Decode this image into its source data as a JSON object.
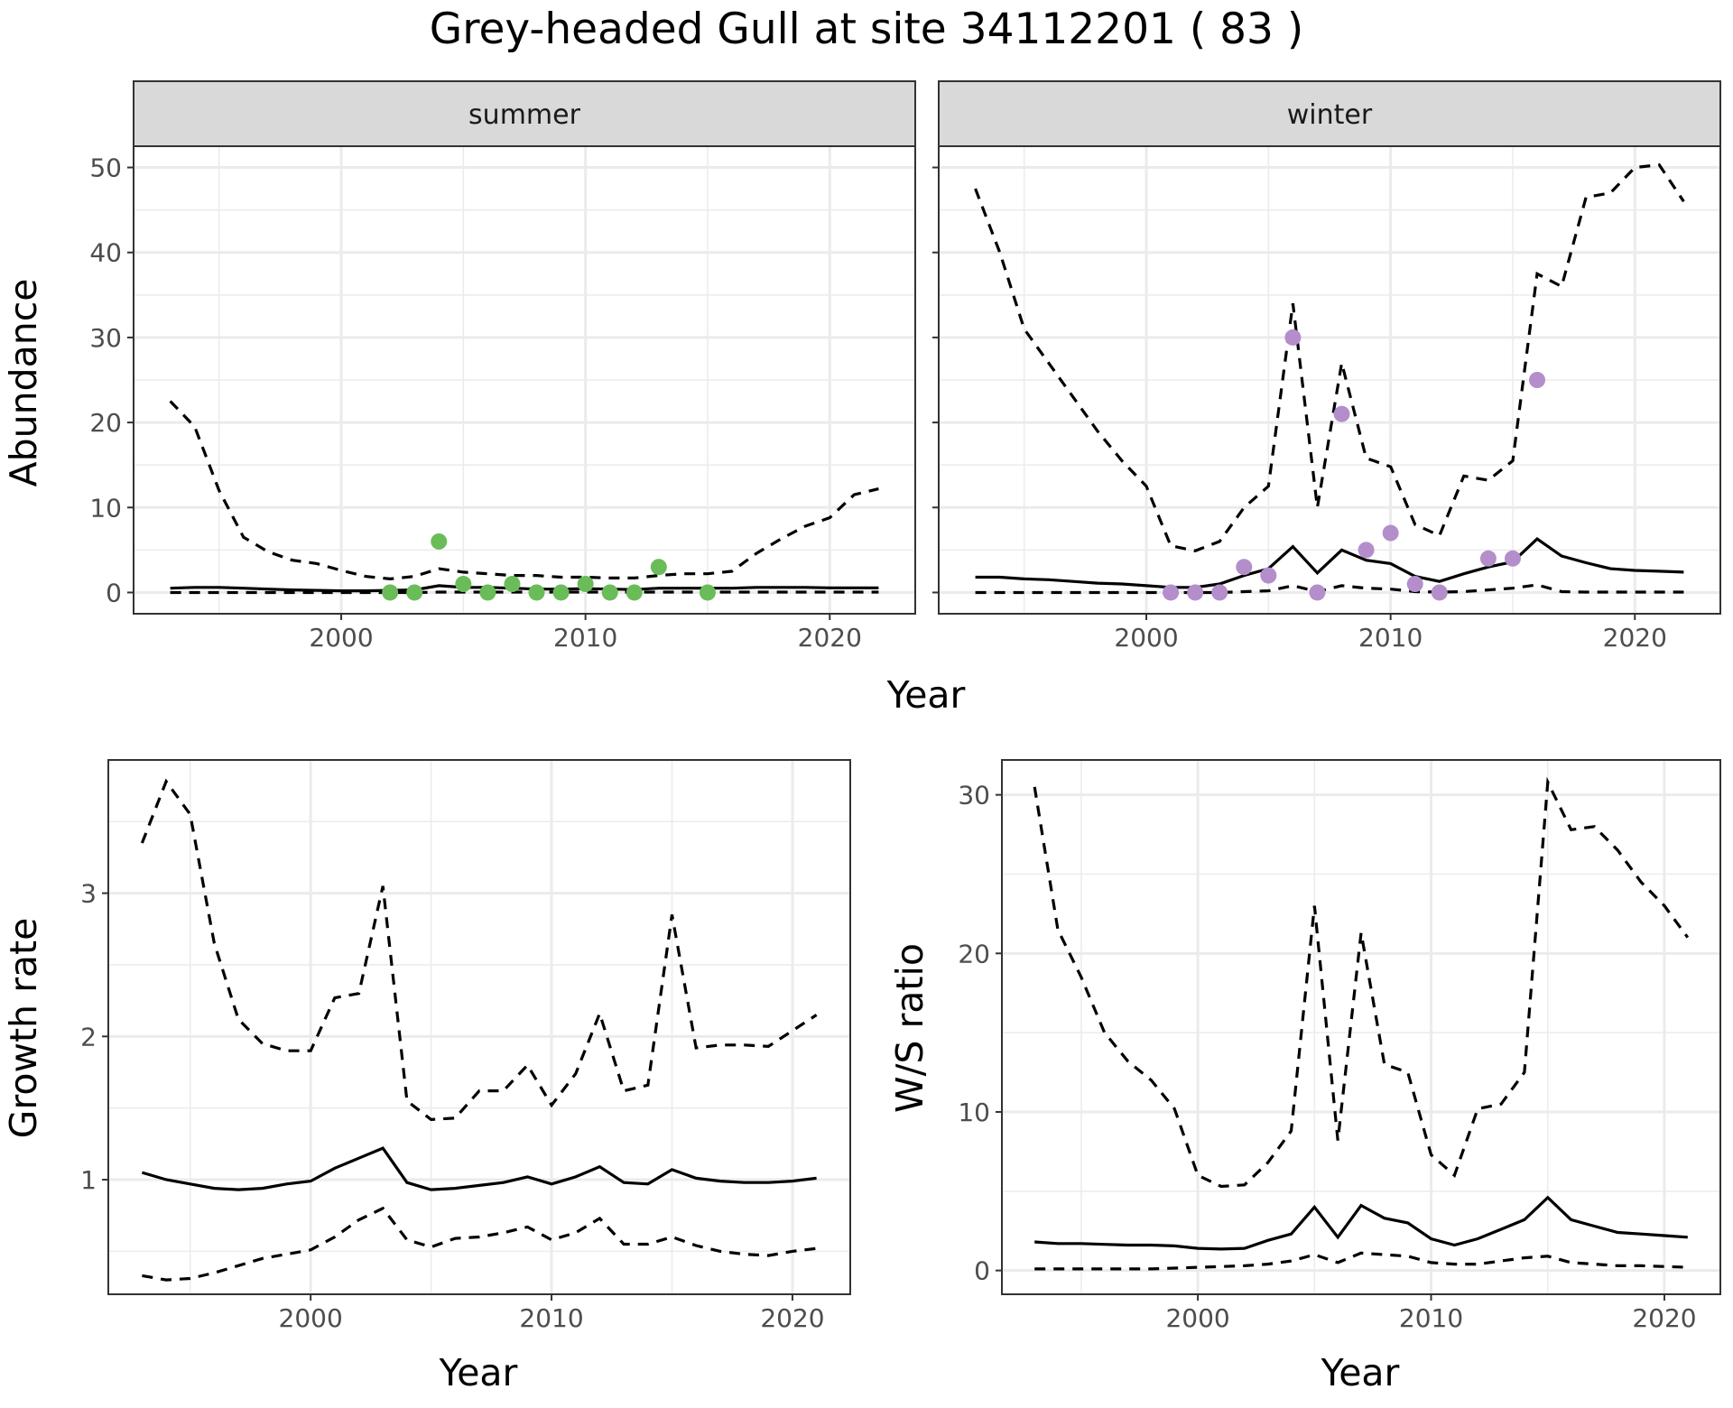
{
  "title": "Grey-headed Gull at site 34112201 ( 83 )",
  "abundance": {
    "ylabel": "Abundance",
    "xlabel": "Year",
    "ylim": [
      -2.5,
      52.5
    ],
    "yticks": [
      0,
      10,
      20,
      30,
      40,
      50
    ],
    "xlim": [
      1991.5,
      2023.5
    ],
    "xticks": [
      2000,
      2010,
      2020
    ]
  },
  "growth": {
    "ylabel": "Growth rate",
    "xlabel": "Year",
    "ylim": [
      0.2,
      3.93
    ],
    "yticks": [
      1,
      2,
      3
    ],
    "xlim": [
      1991.6,
      2022.4
    ],
    "xticks": [
      2000,
      2010,
      2020
    ]
  },
  "ratio": {
    "ylabel": "W/S ratio",
    "xlabel": "Year",
    "ylim": [
      -1.5,
      32.2
    ],
    "yticks": [
      0,
      10,
      20,
      30
    ],
    "xlim": [
      1991.6,
      2022.4
    ],
    "xticks": [
      2000,
      2010,
      2020
    ]
  },
  "chart_data": [
    {
      "type": "line",
      "facet": "summer",
      "point_color": "#6abc58",
      "series": [
        {
          "role": "estimate",
          "x": [
            1993,
            1994,
            1995,
            1996,
            1997,
            1998,
            1999,
            2000,
            2001,
            2002,
            2003,
            2004,
            2005,
            2006,
            2007,
            2008,
            2009,
            2010,
            2011,
            2012,
            2013,
            2014,
            2015,
            2016,
            2017,
            2018,
            2019,
            2020,
            2021,
            2022
          ],
          "values": [
            0.5,
            0.6,
            0.6,
            0.5,
            0.4,
            0.3,
            0.25,
            0.2,
            0.2,
            0.25,
            0.3,
            0.8,
            0.6,
            0.6,
            0.5,
            0.4,
            0.4,
            0.45,
            0.4,
            0.35,
            0.5,
            0.5,
            0.5,
            0.5,
            0.6,
            0.6,
            0.6,
            0.55,
            0.55,
            0.55
          ]
        },
        {
          "role": "upper",
          "x": [
            1993,
            1994,
            1995,
            1996,
            1997,
            1998,
            1999,
            2000,
            2001,
            2002,
            2003,
            2004,
            2005,
            2006,
            2007,
            2008,
            2009,
            2010,
            2011,
            2012,
            2013,
            2014,
            2015,
            2016,
            2017,
            2018,
            2019,
            2020,
            2021,
            2022
          ],
          "values": [
            22.5,
            19.5,
            12,
            6.5,
            4.8,
            3.8,
            3.4,
            2.6,
            1.9,
            1.6,
            1.9,
            2.8,
            2.4,
            2.2,
            2,
            2,
            1.8,
            1.8,
            1.7,
            1.7,
            2,
            2.2,
            2.2,
            2.5,
            4.6,
            6.3,
            7.8,
            8.8,
            11.5,
            12.2
          ]
        },
        {
          "role": "lower",
          "x": [
            1993,
            1994,
            1995,
            1996,
            1997,
            1998,
            1999,
            2000,
            2001,
            2002,
            2003,
            2004,
            2005,
            2006,
            2007,
            2008,
            2009,
            2010,
            2011,
            2012,
            2013,
            2014,
            2015,
            2016,
            2017,
            2018,
            2019,
            2020,
            2021,
            2022
          ],
          "values": [
            0,
            0,
            0,
            0,
            0,
            0,
            0,
            0,
            0,
            0,
            0,
            0.05,
            0.05,
            0.05,
            0.05,
            0.05,
            0.05,
            0.05,
            0.05,
            0.05,
            0.05,
            0.05,
            0.05,
            0.05,
            0.05,
            0.05,
            0.05,
            0.05,
            0.05,
            0.05
          ]
        }
      ],
      "points": {
        "x": [
          2002,
          2003,
          2004,
          2005,
          2006,
          2007,
          2008,
          2009,
          2010,
          2011,
          2012,
          2013,
          2015
        ],
        "y": [
          0,
          0,
          6,
          1,
          0,
          1,
          0,
          0,
          1,
          0,
          0,
          3,
          0
        ]
      }
    },
    {
      "type": "line",
      "facet": "winter",
      "point_color": "#b38ecb",
      "series": [
        {
          "role": "estimate",
          "x": [
            1993,
            1994,
            1995,
            1996,
            1997,
            1998,
            1999,
            2000,
            2001,
            2002,
            2003,
            2004,
            2005,
            2006,
            2007,
            2008,
            2009,
            2010,
            2011,
            2012,
            2013,
            2014,
            2015,
            2016,
            2017,
            2018,
            2019,
            2020,
            2021,
            2022
          ],
          "values": [
            1.8,
            1.8,
            1.6,
            1.5,
            1.3,
            1.1,
            1,
            0.8,
            0.6,
            0.6,
            1,
            2,
            2.8,
            5.4,
            2.3,
            5,
            3.8,
            3.4,
            1.9,
            1.3,
            2.2,
            3,
            3.6,
            6.3,
            4.3,
            3.5,
            2.8,
            2.6,
            2.5,
            2.4
          ]
        },
        {
          "role": "upper",
          "x": [
            1993,
            1994,
            1995,
            1996,
            1997,
            1998,
            1999,
            2000,
            2001,
            2002,
            2003,
            2004,
            2005,
            2006,
            2007,
            2008,
            2009,
            2010,
            2011,
            2012,
            2013,
            2014,
            2015,
            2016,
            2017,
            2018,
            2019,
            2020,
            2021,
            2022
          ],
          "values": [
            47.5,
            40,
            31,
            27,
            23,
            19,
            15.5,
            12.5,
            5.5,
            4.9,
            6,
            10,
            12.5,
            34,
            10,
            27,
            15.8,
            14.8,
            8,
            6.7,
            13.7,
            13.2,
            15.5,
            37.5,
            36,
            46.5,
            47,
            50,
            50.3,
            46
          ]
        },
        {
          "role": "lower",
          "x": [
            1993,
            1994,
            1995,
            1996,
            1997,
            1998,
            1999,
            2000,
            2001,
            2002,
            2003,
            2004,
            2005,
            2006,
            2007,
            2008,
            2009,
            2010,
            2011,
            2012,
            2013,
            2014,
            2015,
            2016,
            2017,
            2018,
            2019,
            2020,
            2021,
            2022
          ],
          "values": [
            0,
            0,
            0,
            0,
            0,
            0,
            0,
            0,
            0,
            0,
            0,
            0.1,
            0.2,
            0.8,
            0.1,
            0.8,
            0.5,
            0.4,
            0.1,
            0.05,
            0.1,
            0.3,
            0.5,
            0.9,
            0.1,
            0.05,
            0.05,
            0.05,
            0.05,
            0.05
          ]
        }
      ],
      "points": {
        "x": [
          2001,
          2002,
          2003,
          2004,
          2005,
          2006,
          2007,
          2008,
          2009,
          2010,
          2011,
          2012,
          2014,
          2015,
          2016
        ],
        "y": [
          0,
          0,
          0,
          3,
          2,
          30,
          0,
          21,
          5,
          7,
          1,
          0,
          4,
          4,
          25
        ]
      }
    },
    {
      "type": "line",
      "series": [
        {
          "role": "estimate",
          "x": [
            1993,
            1994,
            1995,
            1996,
            1997,
            1998,
            1999,
            2000,
            2001,
            2002,
            2003,
            2004,
            2005,
            2006,
            2007,
            2008,
            2009,
            2010,
            2011,
            2012,
            2013,
            2014,
            2015,
            2016,
            2017,
            2018,
            2019,
            2020,
            2021
          ],
          "values": [
            1.05,
            1.0,
            0.97,
            0.94,
            0.93,
            0.94,
            0.97,
            0.99,
            1.08,
            1.15,
            1.22,
            0.98,
            0.93,
            0.94,
            0.96,
            0.98,
            1.02,
            0.97,
            1.02,
            1.09,
            0.98,
            0.97,
            1.07,
            1.01,
            0.99,
            0.98,
            0.98,
            0.99,
            1.01
          ]
        },
        {
          "role": "upper",
          "x": [
            1993,
            1994,
            1995,
            1996,
            1997,
            1998,
            1999,
            2000,
            2001,
            2002,
            2003,
            2004,
            2005,
            2006,
            2007,
            2008,
            2009,
            2010,
            2011,
            2012,
            2013,
            2014,
            2015,
            2016,
            2017,
            2018,
            2019,
            2020,
            2021
          ],
          "values": [
            3.35,
            3.78,
            3.55,
            2.65,
            2.12,
            1.95,
            1.9,
            1.9,
            2.27,
            2.3,
            3.05,
            1.55,
            1.42,
            1.43,
            1.62,
            1.62,
            1.8,
            1.52,
            1.74,
            2.16,
            1.62,
            1.66,
            2.85,
            1.92,
            1.94,
            1.94,
            1.93,
            2.04,
            2.15
          ]
        },
        {
          "role": "lower",
          "x": [
            1993,
            1994,
            1995,
            1996,
            1997,
            1998,
            1999,
            2000,
            2001,
            2002,
            2003,
            2004,
            2005,
            2006,
            2007,
            2008,
            2009,
            2010,
            2011,
            2012,
            2013,
            2014,
            2015,
            2016,
            2017,
            2018,
            2019,
            2020,
            2021
          ],
          "values": [
            0.33,
            0.3,
            0.31,
            0.35,
            0.4,
            0.45,
            0.48,
            0.51,
            0.6,
            0.72,
            0.8,
            0.58,
            0.53,
            0.59,
            0.6,
            0.63,
            0.67,
            0.58,
            0.63,
            0.73,
            0.55,
            0.55,
            0.6,
            0.54,
            0.5,
            0.48,
            0.47,
            0.5,
            0.52
          ]
        }
      ]
    },
    {
      "type": "line",
      "series": [
        {
          "role": "estimate",
          "x": [
            1993,
            1994,
            1995,
            1996,
            1997,
            1998,
            1999,
            2000,
            2001,
            2002,
            2003,
            2004,
            2005,
            2006,
            2007,
            2008,
            2009,
            2010,
            2011,
            2012,
            2013,
            2014,
            2015,
            2016,
            2017,
            2018,
            2019,
            2020,
            2021
          ],
          "values": [
            1.8,
            1.7,
            1.7,
            1.65,
            1.6,
            1.6,
            1.55,
            1.4,
            1.35,
            1.4,
            1.9,
            2.3,
            4,
            2.1,
            4.1,
            3.3,
            3,
            2,
            1.6,
            2,
            2.6,
            3.2,
            4.6,
            3.2,
            2.8,
            2.4,
            2.3,
            2.2,
            2.1
          ]
        },
        {
          "role": "upper",
          "x": [
            1993,
            1994,
            1995,
            1996,
            1997,
            1998,
            1999,
            2000,
            2001,
            2002,
            2003,
            2004,
            2005,
            2006,
            2007,
            2008,
            2009,
            2010,
            2011,
            2012,
            2013,
            2014,
            2015,
            2016,
            2017,
            2018,
            2019,
            2020,
            2021
          ],
          "values": [
            30.5,
            21.5,
            18.5,
            15,
            13.2,
            12,
            10.2,
            6,
            5.3,
            5.4,
            6.8,
            8.8,
            23,
            8.2,
            21.3,
            13,
            12.5,
            7.3,
            6,
            10.2,
            10.5,
            12.5,
            30.8,
            27.8,
            28,
            26.5,
            24.5,
            23,
            21
          ]
        },
        {
          "role": "lower",
          "x": [
            1993,
            1994,
            1995,
            1996,
            1997,
            1998,
            1999,
            2000,
            2001,
            2002,
            2003,
            2004,
            2005,
            2006,
            2007,
            2008,
            2009,
            2010,
            2011,
            2012,
            2013,
            2014,
            2015,
            2016,
            2017,
            2018,
            2019,
            2020,
            2021
          ],
          "values": [
            0.1,
            0.1,
            0.1,
            0.1,
            0.1,
            0.1,
            0.15,
            0.2,
            0.25,
            0.3,
            0.4,
            0.6,
            1.0,
            0.5,
            1.1,
            1.0,
            0.9,
            0.5,
            0.4,
            0.4,
            0.6,
            0.8,
            0.9,
            0.5,
            0.4,
            0.3,
            0.3,
            0.25,
            0.2
          ]
        }
      ]
    }
  ]
}
